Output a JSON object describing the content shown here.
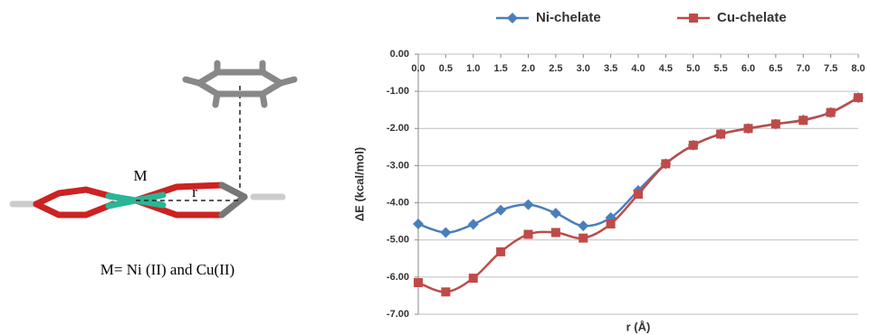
{
  "figure": {
    "metal_label": "M",
    "distance_label": "r",
    "caption": "M= Ni (II) and Cu(II)"
  },
  "chart_data": {
    "type": "line",
    "x_label": "r (Å)",
    "y_label": "ΔE (kcal/mol)",
    "x": [
      0,
      0.5,
      1,
      1.5,
      2,
      2.5,
      3,
      3.5,
      4,
      4.5,
      5,
      5.5,
      6,
      6.5,
      7,
      7.5,
      8
    ],
    "series": [
      {
        "name": "Ni-chelate",
        "color": "#4a7ebb",
        "marker": "diamond",
        "values": [
          -4.57,
          -4.8,
          -4.58,
          -4.2,
          -4.05,
          -4.28,
          -4.62,
          -4.4,
          -3.67,
          -2.95,
          -2.45,
          -2.15,
          -2.0,
          -1.88,
          -1.77,
          -1.57,
          -1.17
        ]
      },
      {
        "name": "Cu-chelate",
        "color": "#be4b48",
        "marker": "square",
        "values": [
          -6.15,
          -6.4,
          -6.03,
          -5.32,
          -4.85,
          -4.8,
          -4.95,
          -4.57,
          -3.77,
          -2.95,
          -2.45,
          -2.15,
          -2.0,
          -1.88,
          -1.78,
          -1.57,
          -1.17
        ]
      }
    ],
    "xlim": [
      0,
      8
    ],
    "ylim": [
      -7,
      0
    ],
    "xticks": [
      {
        "value": 0,
        "label": "0.0"
      },
      {
        "value": 0.5,
        "label": "0.5"
      },
      {
        "value": 1,
        "label": "1.0"
      },
      {
        "value": 1.5,
        "label": "1.5"
      },
      {
        "value": 2,
        "label": "2.0"
      },
      {
        "value": 2.5,
        "label": "2.5"
      },
      {
        "value": 3,
        "label": "3.0"
      },
      {
        "value": 3.5,
        "label": "3.5"
      },
      {
        "value": 4,
        "label": "4.0"
      },
      {
        "value": 4.5,
        "label": "4.5"
      },
      {
        "value": 5,
        "label": "5.0"
      },
      {
        "value": 5.5,
        "label": "5.5"
      },
      {
        "value": 6,
        "label": "6.0"
      },
      {
        "value": 6.5,
        "label": "6.5"
      },
      {
        "value": 7,
        "label": "7.0"
      },
      {
        "value": 7.5,
        "label": "7.5"
      },
      {
        "value": 8,
        "label": "8.0"
      }
    ],
    "yticks": [
      {
        "value": 0,
        "label": "0.00"
      },
      {
        "value": -1,
        "label": "-1.00"
      },
      {
        "value": -2,
        "label": "-2.00"
      },
      {
        "value": -3,
        "label": "-3.00"
      },
      {
        "value": -4,
        "label": "-4.00"
      },
      {
        "value": -5,
        "label": "-5.00"
      },
      {
        "value": -6,
        "label": "-6.00"
      },
      {
        "value": -7,
        "label": "-7.00"
      }
    ],
    "grid": true,
    "legend": "top"
  }
}
